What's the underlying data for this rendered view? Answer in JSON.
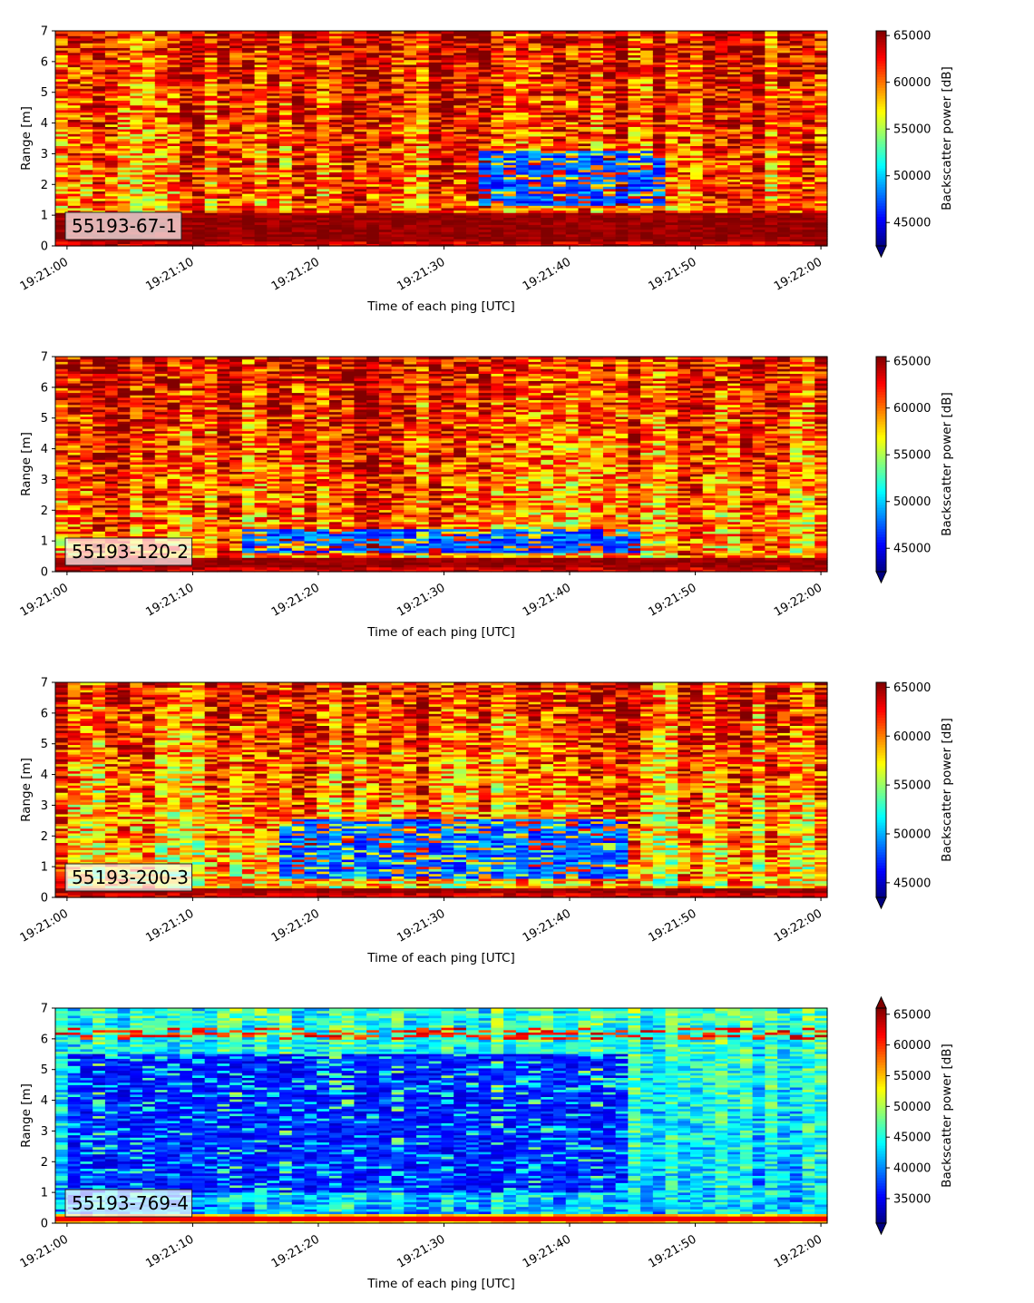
{
  "chart_data": [
    {
      "type": "heatmap",
      "label": "55193-67-1",
      "xlabel": "Time of each ping [UTC]",
      "ylabel": "Range [m]",
      "colorbar_label": "Backscatter power [dB]",
      "x_tick_labels": [
        "19:21:00",
        "19:21:10",
        "19:21:20",
        "19:21:30",
        "19:21:40",
        "19:21:50",
        "19:22:00"
      ],
      "xlim": [
        "19:20:59",
        "19:22:00.5"
      ],
      "y_ticks": [
        0,
        1,
        2,
        3,
        4,
        5,
        6,
        7
      ],
      "ylim": [
        0,
        7
      ],
      "clim": [
        42500,
        65500
      ],
      "colorbar_ticks": [
        45000,
        50000,
        55000,
        60000,
        65000
      ],
      "colorbar_extend": "min",
      "colormap": "jet",
      "features": {
        "bottom_band_top_m": 1.1,
        "dark_patch": {
          "t_start_s": 33,
          "t_end_s": 48,
          "y_low_m": 1.3,
          "y_high_m": 3.1
        },
        "mean_level": 59500,
        "upper_level": 63000
      }
    },
    {
      "type": "heatmap",
      "label": "55193-120-2",
      "xlabel": "Time of each ping [UTC]",
      "ylabel": "Range [m]",
      "colorbar_label": "Backscatter power [dB]",
      "x_tick_labels": [
        "19:21:00",
        "19:21:10",
        "19:21:20",
        "19:21:30",
        "19:21:40",
        "19:21:50",
        "19:22:00"
      ],
      "xlim": [
        "19:20:59",
        "19:22:00.5"
      ],
      "y_ticks": [
        0,
        1,
        2,
        3,
        4,
        5,
        6,
        7
      ],
      "ylim": [
        0,
        7
      ],
      "clim": [
        42500,
        65500
      ],
      "colorbar_ticks": [
        45000,
        50000,
        55000,
        60000,
        65000
      ],
      "colorbar_extend": "min",
      "colormap": "jet",
      "features": {
        "bottom_band_top_m": 0.45,
        "dark_patch": {
          "t_start_s": 14,
          "t_end_s": 46,
          "y_low_m": 0.6,
          "y_high_m": 1.4
        },
        "mean_level": 59000,
        "upper_level": 63000
      }
    },
    {
      "type": "heatmap",
      "label": "55193-200-3",
      "xlabel": "Time of each ping [UTC]",
      "ylabel": "Range [m]",
      "colorbar_label": "Backscatter power [dB]",
      "x_tick_labels": [
        "19:21:00",
        "19:21:10",
        "19:21:20",
        "19:21:30",
        "19:21:40",
        "19:21:50",
        "19:22:00"
      ],
      "xlim": [
        "19:20:59",
        "19:22:00.5"
      ],
      "y_ticks": [
        0,
        1,
        2,
        3,
        4,
        5,
        6,
        7
      ],
      "ylim": [
        0,
        7
      ],
      "clim": [
        43500,
        65500
      ],
      "colorbar_ticks": [
        45000,
        50000,
        55000,
        60000,
        65000
      ],
      "colorbar_extend": "min",
      "colormap": "jet",
      "features": {
        "bottom_band_top_m": 0.35,
        "dark_patch": {
          "t_start_s": 17,
          "t_end_s": 45,
          "y_low_m": 0.6,
          "y_high_m": 2.6
        },
        "mean_level": 57500,
        "upper_level": 62500
      }
    },
    {
      "type": "heatmap",
      "label": "55193-769-4",
      "xlabel": "Time of each ping [UTC]",
      "ylabel": "Range [m]",
      "colorbar_label": "Backscatter power [dB]",
      "x_tick_labels": [
        "19:21:00",
        "19:21:10",
        "19:21:20",
        "19:21:30",
        "19:21:40",
        "19:21:50",
        "19:22:00"
      ],
      "xlim": [
        "19:20:59",
        "19:22:00.5"
      ],
      "y_ticks": [
        0,
        1,
        2,
        3,
        4,
        5,
        6,
        7
      ],
      "ylim": [
        0,
        7
      ],
      "clim": [
        31000,
        66000
      ],
      "colorbar_ticks": [
        35000,
        40000,
        45000,
        50000,
        55000,
        60000,
        65000
      ],
      "colorbar_extend": "both",
      "colormap": "jet",
      "features": {
        "bottom_band_top_m": 0.3,
        "dark_patch": {
          "t_start_s": 0,
          "t_end_s": 45,
          "y_low_m": 1.0,
          "y_high_m": 5.5
        },
        "mean_level": 42000,
        "upper_level": 46000
      }
    }
  ]
}
